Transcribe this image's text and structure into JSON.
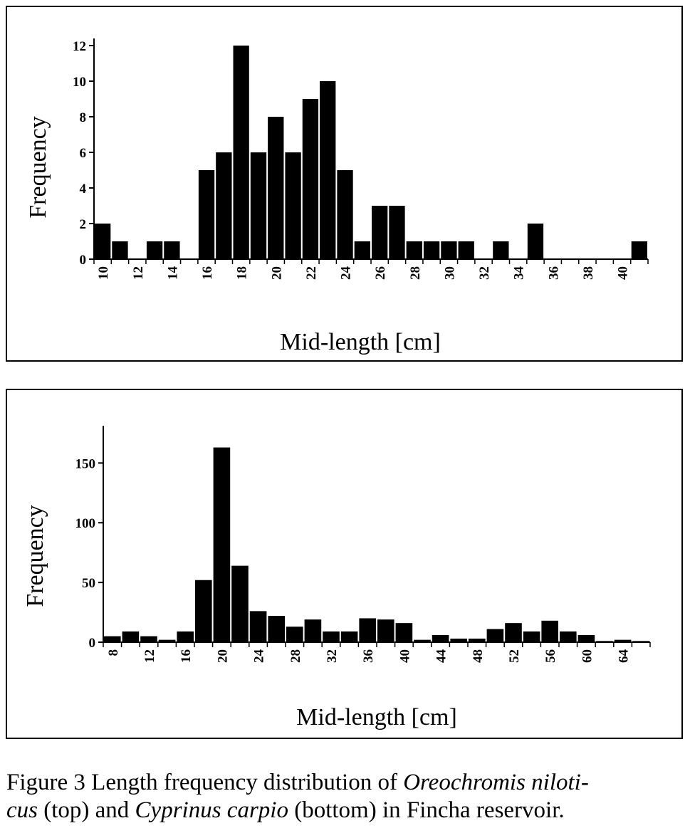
{
  "caption": {
    "prefix": "Figure 3 Length frequency distribution of ",
    "species1": "Oreochromis niloti-",
    "species1_tail": "cus",
    "middle": " (top) and ",
    "species2": "Cyprinus carpio",
    "suffix": " (bottom) in Fincha reservoir."
  },
  "chart_data": [
    {
      "type": "bar",
      "xlabel": "Mid-length [cm]",
      "ylabel": "Frequency",
      "ylim": [
        0,
        12
      ],
      "yticks": [
        0,
        2,
        4,
        6,
        8,
        10,
        12
      ],
      "categories": [
        10,
        11,
        12,
        13,
        14,
        15,
        16,
        17,
        18,
        19,
        20,
        21,
        22,
        23,
        24,
        25,
        26,
        27,
        28,
        29,
        30,
        31,
        32,
        33,
        34,
        35,
        36,
        37,
        38,
        39,
        40,
        41
      ],
      "values": [
        2,
        1,
        0,
        1,
        1,
        0,
        5,
        6,
        12,
        6,
        8,
        6,
        9,
        10,
        5,
        1,
        3,
        3,
        1,
        1,
        1,
        1,
        0,
        1,
        0,
        2,
        0,
        0,
        0,
        0,
        0,
        1
      ],
      "xtick_labels": [
        "10",
        "12",
        "14",
        "16",
        "18",
        "20",
        "22",
        "24",
        "26",
        "28",
        "30",
        "32",
        "34",
        "36",
        "38",
        "40"
      ],
      "xtick_label_rotation": "vertical",
      "grid": false,
      "legend": "none"
    },
    {
      "type": "bar",
      "xlabel": "Mid-length [cm]",
      "ylabel": "Frequency",
      "ylim": [
        0,
        180
      ],
      "yticks": [
        0,
        50,
        100,
        150
      ],
      "categories": [
        8,
        10,
        12,
        14,
        16,
        18,
        20,
        22,
        24,
        26,
        28,
        30,
        32,
        34,
        36,
        38,
        40,
        42,
        44,
        46,
        48,
        50,
        52,
        54,
        56,
        58,
        60,
        62,
        64,
        66
      ],
      "values": [
        5,
        9,
        5,
        2,
        9,
        52,
        163,
        64,
        26,
        22,
        13,
        19,
        9,
        9,
        20,
        19,
        16,
        2,
        6,
        3,
        3,
        11,
        16,
        9,
        18,
        9,
        6,
        1,
        2,
        1
      ],
      "xtick_labels": [
        "8",
        "12",
        "16",
        "20",
        "24",
        "28",
        "32",
        "36",
        "40",
        "44",
        "48",
        "52",
        "56",
        "60",
        "64"
      ],
      "xtick_label_rotation": "vertical",
      "grid": false,
      "legend": "none"
    }
  ]
}
